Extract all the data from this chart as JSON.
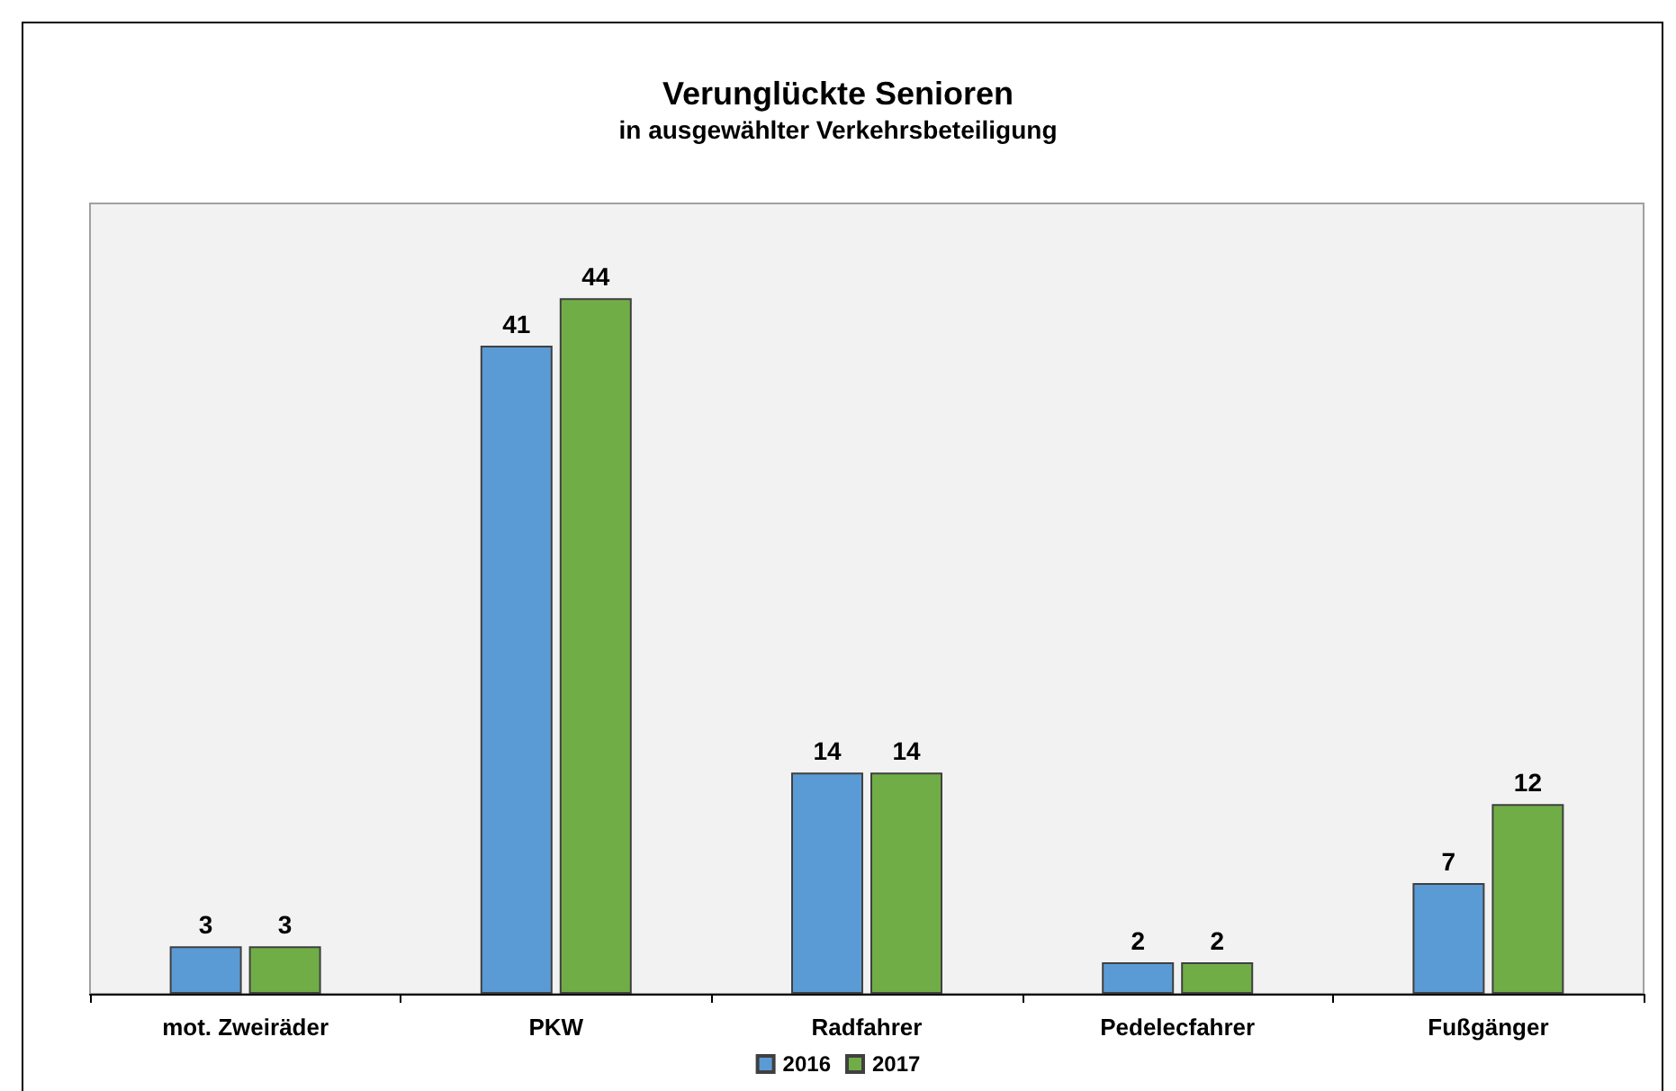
{
  "chart_data": {
    "type": "bar",
    "title": "Verunglückte Senioren",
    "subtitle": "in ausgewählter Verkehrsbeteiligung",
    "categories": [
      "mot. Zweiräder",
      "PKW",
      "Radfahrer",
      "Pedelecfahrer",
      "Fußgänger"
    ],
    "series": [
      {
        "name": "2016",
        "color": "#5b9bd5",
        "values": [
          3,
          41,
          14,
          2,
          7
        ]
      },
      {
        "name": "2017",
        "color": "#70ad47",
        "values": [
          3,
          44,
          14,
          2,
          12
        ]
      }
    ],
    "data_labels": true,
    "grid": false,
    "legend": "bottom",
    "tick_labels": "x"
  }
}
